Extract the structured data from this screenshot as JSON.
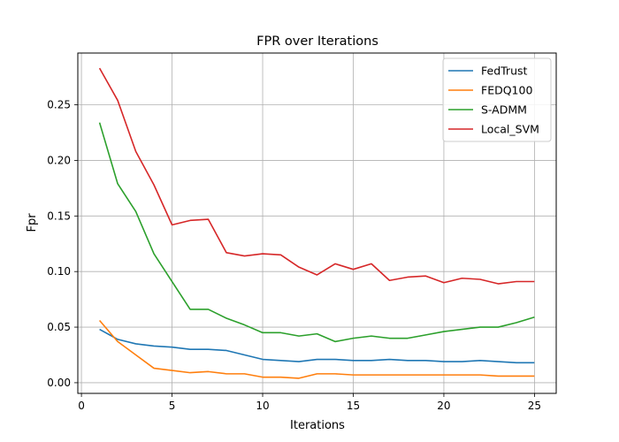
{
  "chart_data": {
    "type": "line",
    "title": "FPR over Iterations",
    "xlabel": "Iterations",
    "ylabel": "Fpr",
    "xlim": [
      -0.2,
      26.2
    ],
    "ylim": [
      -0.0096,
      0.2966
    ],
    "x_ticks": [
      0,
      5,
      10,
      15,
      20,
      25
    ],
    "y_ticks": [
      0.0,
      0.05,
      0.1,
      0.15,
      0.2,
      0.25
    ],
    "x_tick_labels": [
      "0",
      "5",
      "10",
      "15",
      "20",
      "25"
    ],
    "y_tick_labels": [
      "0.00",
      "0.05",
      "0.10",
      "0.15",
      "0.20",
      "0.25"
    ],
    "grid": true,
    "legend_position": "top-right",
    "x": [
      1,
      2,
      3,
      4,
      5,
      6,
      7,
      8,
      9,
      10,
      11,
      12,
      13,
      14,
      15,
      16,
      17,
      18,
      19,
      20,
      21,
      22,
      23,
      24,
      25
    ],
    "series": [
      {
        "name": "FedTrust",
        "color": "#1f77b4",
        "values": [
          0.048,
          0.039,
          0.035,
          0.033,
          0.032,
          0.03,
          0.03,
          0.029,
          0.025,
          0.021,
          0.02,
          0.019,
          0.021,
          0.021,
          0.02,
          0.02,
          0.021,
          0.02,
          0.02,
          0.019,
          0.019,
          0.02,
          0.019,
          0.018,
          0.018
        ]
      },
      {
        "name": "FEDQ100",
        "color": "#ff7f0e",
        "values": [
          0.056,
          0.037,
          0.025,
          0.013,
          0.011,
          0.009,
          0.01,
          0.008,
          0.008,
          0.005,
          0.005,
          0.004,
          0.008,
          0.008,
          0.007,
          0.007,
          0.007,
          0.007,
          0.007,
          0.007,
          0.007,
          0.007,
          0.006,
          0.006,
          0.006
        ]
      },
      {
        "name": "S-ADMM",
        "color": "#2ca02c",
        "values": [
          0.234,
          0.179,
          0.154,
          0.116,
          0.091,
          0.066,
          0.066,
          0.058,
          0.052,
          0.045,
          0.045,
          0.042,
          0.044,
          0.037,
          0.04,
          0.042,
          0.04,
          0.04,
          0.043,
          0.046,
          0.048,
          0.05,
          0.05,
          0.054,
          0.059
        ]
      },
      {
        "name": "Local_SVM",
        "color": "#d62728",
        "values": [
          0.283,
          0.254,
          0.208,
          0.178,
          0.142,
          0.146,
          0.147,
          0.117,
          0.114,
          0.116,
          0.115,
          0.104,
          0.097,
          0.107,
          0.102,
          0.107,
          0.092,
          0.095,
          0.096,
          0.09,
          0.094,
          0.093,
          0.089,
          0.091,
          0.091
        ]
      }
    ]
  }
}
